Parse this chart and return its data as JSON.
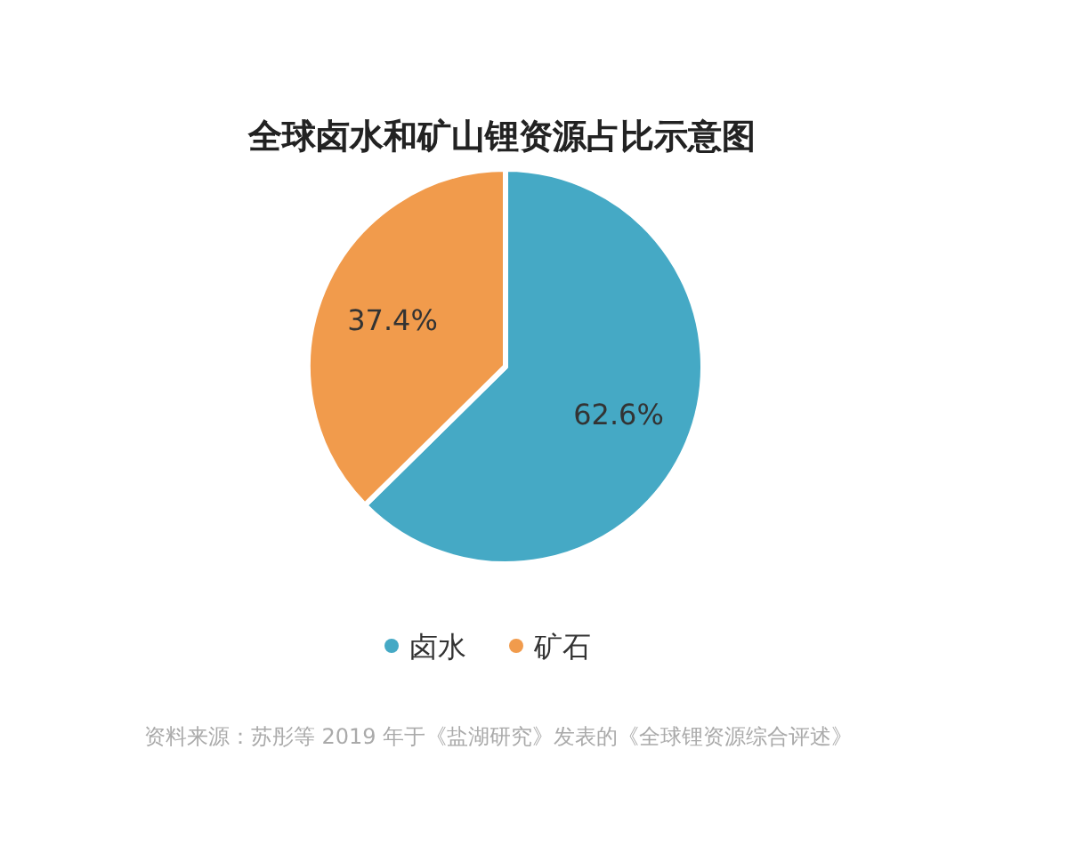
{
  "chart_data": {
    "type": "pie",
    "title": "全球卤水和矿山锂资源占比示意图",
    "categories": [
      "卤水",
      "矿石"
    ],
    "values": [
      62.6,
      37.4
    ],
    "colors": [
      "#45a9c5",
      "#f19b4c"
    ],
    "value_labels": [
      "62.6%",
      "37.4%"
    ],
    "legend": "bottom",
    "annotations": [
      "资料来源：苏彤等 2019 年于《盐湖研究》发表的《全球锂资源综合评述》"
    ]
  }
}
